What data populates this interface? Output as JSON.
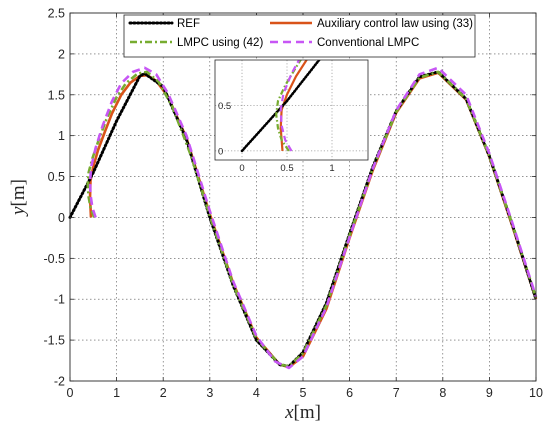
{
  "chart_data": {
    "type": "line",
    "title": "",
    "xlabel": {
      "var": "x",
      "unit": "[m]"
    },
    "ylabel": {
      "var": "y",
      "unit": "[m]"
    },
    "xlim": [
      0,
      10
    ],
    "ylim": [
      -2,
      2.5
    ],
    "xticks": [
      "0",
      "1",
      "2",
      "3",
      "4",
      "5",
      "6",
      "7",
      "8",
      "9",
      "10"
    ],
    "yticks": [
      "-2",
      "-1.5",
      "-1",
      "-0.5",
      "0",
      "0.5",
      "1",
      "1.5",
      "2",
      "2.5"
    ],
    "grid": true,
    "legend_position": "top-center",
    "series": [
      {
        "name": "REF",
        "color": "#000000",
        "style": "dotted",
        "x": [
          0.0,
          0.5,
          1.0,
          1.5,
          1.6,
          2.0,
          2.5,
          3.0,
          3.5,
          4.0,
          4.5,
          4.7,
          5.0,
          5.5,
          6.0,
          6.5,
          7.0,
          7.5,
          7.9,
          8.5,
          9.0,
          9.5,
          10.0
        ],
        "y": [
          0.0,
          0.55,
          1.18,
          1.73,
          1.76,
          1.6,
          0.95,
          0.0,
          -0.83,
          -1.5,
          -1.8,
          -1.82,
          -1.65,
          -1.05,
          -0.2,
          0.62,
          1.3,
          1.72,
          1.78,
          1.45,
          0.75,
          -0.1,
          -1.0
        ]
      },
      {
        "name": "Auxiliary control law using (33)",
        "color": "#d95319",
        "style": "solid",
        "x": [
          0.45,
          0.43,
          0.44,
          0.5,
          0.6,
          0.75,
          0.9,
          1.1,
          1.3,
          1.5,
          1.65,
          1.85,
          2.1,
          2.5,
          3.0,
          3.5,
          4.0,
          4.5,
          4.7,
          5.0,
          5.5,
          6.0,
          6.5,
          7.0,
          7.5,
          7.9,
          8.5,
          9.0,
          9.5,
          10.0
        ],
        "y": [
          0.0,
          0.25,
          0.45,
          0.62,
          0.82,
          1.05,
          1.27,
          1.5,
          1.65,
          1.73,
          1.74,
          1.67,
          1.48,
          0.97,
          0.04,
          -0.8,
          -1.47,
          -1.8,
          -1.83,
          -1.7,
          -1.12,
          -0.25,
          0.58,
          1.28,
          1.7,
          1.77,
          1.44,
          0.74,
          -0.12,
          -1.0
        ]
      },
      {
        "name": "LMPC using (42)",
        "color": "#77ac30",
        "style": "dashdot",
        "x": [
          0.52,
          0.44,
          0.4,
          0.38,
          0.4,
          0.48,
          0.6,
          0.78,
          1.0,
          1.2,
          1.45,
          1.65,
          1.9,
          2.2,
          2.6,
          3.0,
          3.5,
          4.0,
          4.5,
          4.7,
          5.0,
          5.5,
          6.0,
          6.5,
          7.0,
          7.5,
          7.9,
          8.5,
          9.0,
          9.5,
          10.0
        ],
        "y": [
          0.0,
          0.12,
          0.25,
          0.4,
          0.55,
          0.72,
          0.92,
          1.2,
          1.47,
          1.64,
          1.76,
          1.78,
          1.66,
          1.35,
          0.75,
          0.02,
          -0.82,
          -1.48,
          -1.8,
          -1.82,
          -1.66,
          -1.08,
          -0.22,
          0.6,
          1.29,
          1.71,
          1.78,
          1.45,
          0.75,
          -0.1,
          -0.98
        ]
      },
      {
        "name": "Conventional LMPC",
        "color": "#c756f5",
        "style": "dashed",
        "x": [
          0.55,
          0.48,
          0.44,
          0.43,
          0.46,
          0.55,
          0.7,
          0.9,
          1.1,
          1.35,
          1.6,
          1.85,
          2.1,
          2.5,
          3.0,
          3.5,
          4.0,
          4.4,
          4.7,
          5.0,
          5.5,
          6.0,
          6.5,
          7.0,
          7.5,
          7.9,
          8.5,
          9.0,
          9.5,
          10.0
        ],
        "y": [
          0.0,
          0.12,
          0.28,
          0.45,
          0.63,
          0.85,
          1.12,
          1.42,
          1.64,
          1.78,
          1.83,
          1.75,
          1.52,
          1.0,
          0.08,
          -0.78,
          -1.45,
          -1.76,
          -1.84,
          -1.7,
          -1.1,
          -0.24,
          0.6,
          1.31,
          1.75,
          1.83,
          1.5,
          0.78,
          -0.08,
          -0.97
        ]
      }
    ],
    "inset": {
      "xlim": [
        -0.3,
        1.4
      ],
      "ylim": [
        -0.1,
        1.0
      ],
      "xticks": [
        "0",
        "0.5",
        "1"
      ],
      "yticks": [
        "0",
        "0.5"
      ],
      "grid": true
    }
  }
}
